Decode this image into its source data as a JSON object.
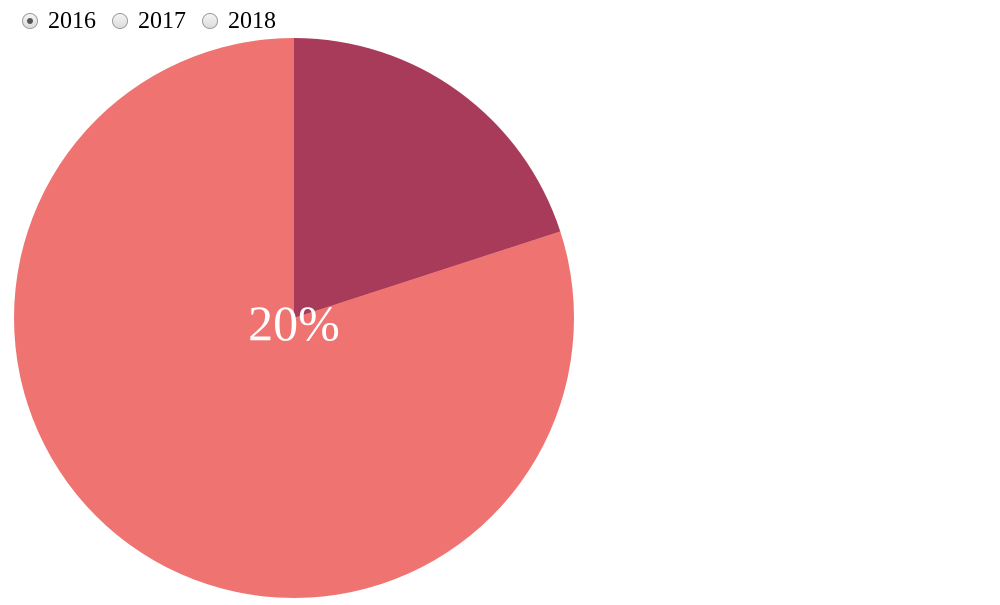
{
  "year_selector": {
    "options": [
      {
        "label": "2016",
        "checked": true
      },
      {
        "label": "2017",
        "checked": false
      },
      {
        "label": "2018",
        "checked": false
      }
    ]
  },
  "chart_data": {
    "type": "pie",
    "slices": [
      {
        "value": 20,
        "color": "#a83b5a"
      },
      {
        "value": 80,
        "color": "#ef7370"
      }
    ],
    "center_label": "20%"
  }
}
